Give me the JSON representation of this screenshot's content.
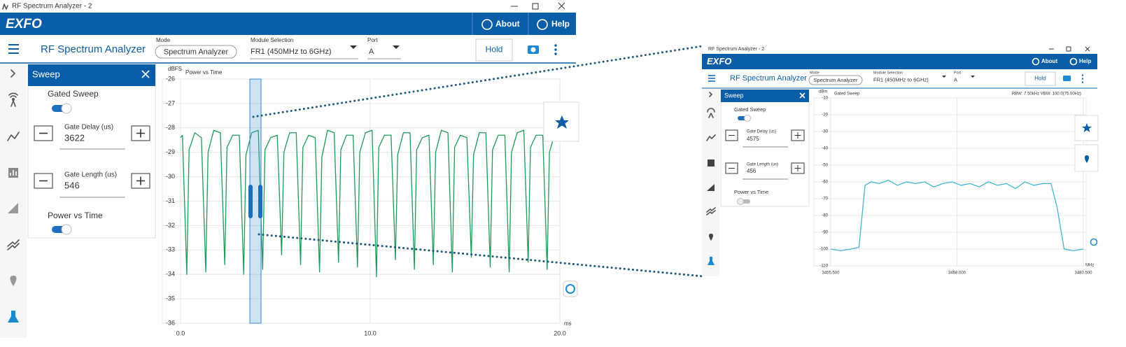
{
  "left_window": {
    "title_bar": "RF Spectrum Analyzer - 2",
    "brand": "EXFO",
    "about": "About",
    "help": "Help",
    "app_title": "RF Spectrum Analyzer",
    "mode_label": "Mode",
    "mode": "Spectrum Analyzer",
    "module_label": "Module Selection",
    "module": "FR1 (450MHz to 6GHz)",
    "port_label": "Port",
    "port": "A",
    "hold": "Hold",
    "panel": {
      "title": "Sweep",
      "gated_sweep": "Gated Sweep",
      "gate_delay_label": "Gate Delay (us)",
      "gate_delay": "3622",
      "gate_length_label": "Gate Length (us)",
      "gate_length": "546",
      "power_vs_time": "Power vs Time"
    }
  },
  "right_window": {
    "title_bar": "RF Spectrum Analyzer - 2",
    "brand": "EXFO",
    "about": "About",
    "help": "Help",
    "app_title": "RF Spectrum Analyzer",
    "mode_label": "Mode",
    "mode": "Spectrum Analyzer",
    "module_label": "Module Selection",
    "module": "FR1 (450MHz to 6GHz)",
    "port_label": "Port",
    "port": "A",
    "hold": "Hold",
    "panel": {
      "title": "Sweep",
      "gated_sweep": "Gated Sweep",
      "gate_delay_label": "Gate Delay (us)",
      "gate_delay": "4575",
      "gate_length_label": "Gate Length (us)",
      "gate_length": "456",
      "power_vs_time": "Power vs Time"
    }
  },
  "chart_data": [
    {
      "type": "line",
      "title": "Power vs Time",
      "y_label": "dBFS",
      "x_label": "ms",
      "color": "#1f9a5b",
      "grid": true,
      "xlim": [
        0,
        20
      ],
      "xticks": [
        {
          "value": 0,
          "label": "0.0"
        },
        {
          "value": 10,
          "label": "10.0"
        },
        {
          "value": 20,
          "label": "20.0"
        }
      ],
      "ylim": [
        -36,
        -26
      ],
      "yticks": [
        -26,
        -27,
        -28,
        -29,
        -30,
        -31,
        -32,
        -33,
        -34,
        -35,
        -36
      ],
      "x": [
        0.0,
        0.1,
        0.33,
        0.45,
        0.75,
        1.1,
        1.33,
        1.45,
        1.75,
        2.1,
        2.33,
        2.45,
        2.75,
        3.1,
        3.33,
        3.45,
        3.75,
        4.1,
        4.33,
        4.45,
        4.75,
        5.1,
        5.33,
        5.45,
        5.75,
        6.1,
        6.33,
        6.45,
        6.75,
        7.1,
        7.33,
        7.45,
        7.75,
        8.1,
        8.33,
        8.45,
        8.75,
        9.1,
        9.33,
        9.45,
        9.75,
        10.1,
        10.33,
        10.45,
        10.75,
        11.1,
        11.33,
        11.45,
        11.75,
        12.1,
        12.33,
        12.45,
        12.75,
        13.1,
        13.33,
        13.45,
        13.75,
        14.1,
        14.33,
        14.45,
        14.75,
        15.1,
        15.33,
        15.45,
        15.75,
        16.1,
        16.33,
        16.45,
        16.75,
        17.1,
        17.33,
        17.45,
        17.75,
        18.1,
        18.33,
        18.45,
        18.75,
        19.1,
        19.33,
        19.45,
        19.75,
        20.0
      ],
      "values": [
        -28.4,
        -28.3,
        -34.0,
        -28.9,
        -28.2,
        -28.4,
        -33.9,
        -29.0,
        -28.1,
        -28.2,
        -33.6,
        -28.8,
        -28.3,
        -28.3,
        -34.0,
        -29.1,
        -28.2,
        -28.1,
        -33.8,
        -28.9,
        -28.4,
        -28.3,
        -33.2,
        -29.0,
        -28.2,
        -28.2,
        -33.6,
        -28.8,
        -28.3,
        -28.4,
        -33.9,
        -29.2,
        -28.1,
        -28.2,
        -33.5,
        -28.9,
        -28.3,
        -28.3,
        -33.7,
        -29.0,
        -28.2,
        -28.1,
        -34.1,
        -28.8,
        -28.3,
        -28.3,
        -33.4,
        -29.1,
        -28.2,
        -28.2,
        -33.8,
        -28.9,
        -28.4,
        -28.3,
        -33.6,
        -29.0,
        -28.1,
        -28.2,
        -33.9,
        -28.8,
        -28.3,
        -28.4,
        -33.3,
        -29.1,
        -28.2,
        -28.2,
        -33.7,
        -28.9,
        -28.3,
        -28.3,
        -33.9,
        -29.0,
        -28.2,
        -28.1,
        -33.5,
        -28.8,
        -28.3,
        -28.3,
        -33.8,
        -29.0,
        -28.2,
        -28.3
      ]
    },
    {
      "type": "line",
      "title": "Gated Sweep",
      "annotation": "RBW: 7.50kHz VBW: 100.0(75.00Hz)",
      "y_label": "dBm",
      "x_label": "MHz",
      "color": "#45b4cf",
      "grid": true,
      "xlim": [
        3455.5,
        3480.5
      ],
      "xticks": [
        {
          "value": 3455.5,
          "label": "3455.500"
        },
        {
          "value": 3468,
          "label": "3468.000"
        },
        {
          "value": 3480.5,
          "label": "3480.500"
        }
      ],
      "ylim": [
        -110,
        -10
      ],
      "yticks": [
        -10,
        -20,
        -30,
        -40,
        -50,
        -60,
        -70,
        -80,
        -90,
        -100,
        -110
      ],
      "x": [
        3455.5,
        3456.5,
        3457.5,
        3458.3,
        3458.9,
        3459.5,
        3460.3,
        3461.2,
        3462.1,
        3463,
        3463.9,
        3464.8,
        3465.7,
        3466.6,
        3467.5,
        3468.4,
        3469.3,
        3470.2,
        3471.1,
        3472,
        3472.9,
        3473.8,
        3474.7,
        3475.6,
        3476.5,
        3477.3,
        3477.9,
        3478.6,
        3479.5,
        3480.5
      ],
      "values": [
        -100,
        -101,
        -100,
        -99,
        -62,
        -60,
        -61,
        -59,
        -62,
        -60,
        -61,
        -60,
        -63,
        -61,
        -60,
        -62,
        -61,
        -63,
        -60,
        -62,
        -61,
        -64,
        -60,
        -62,
        -61,
        -61,
        -75,
        -100,
        -101,
        -100
      ]
    }
  ]
}
